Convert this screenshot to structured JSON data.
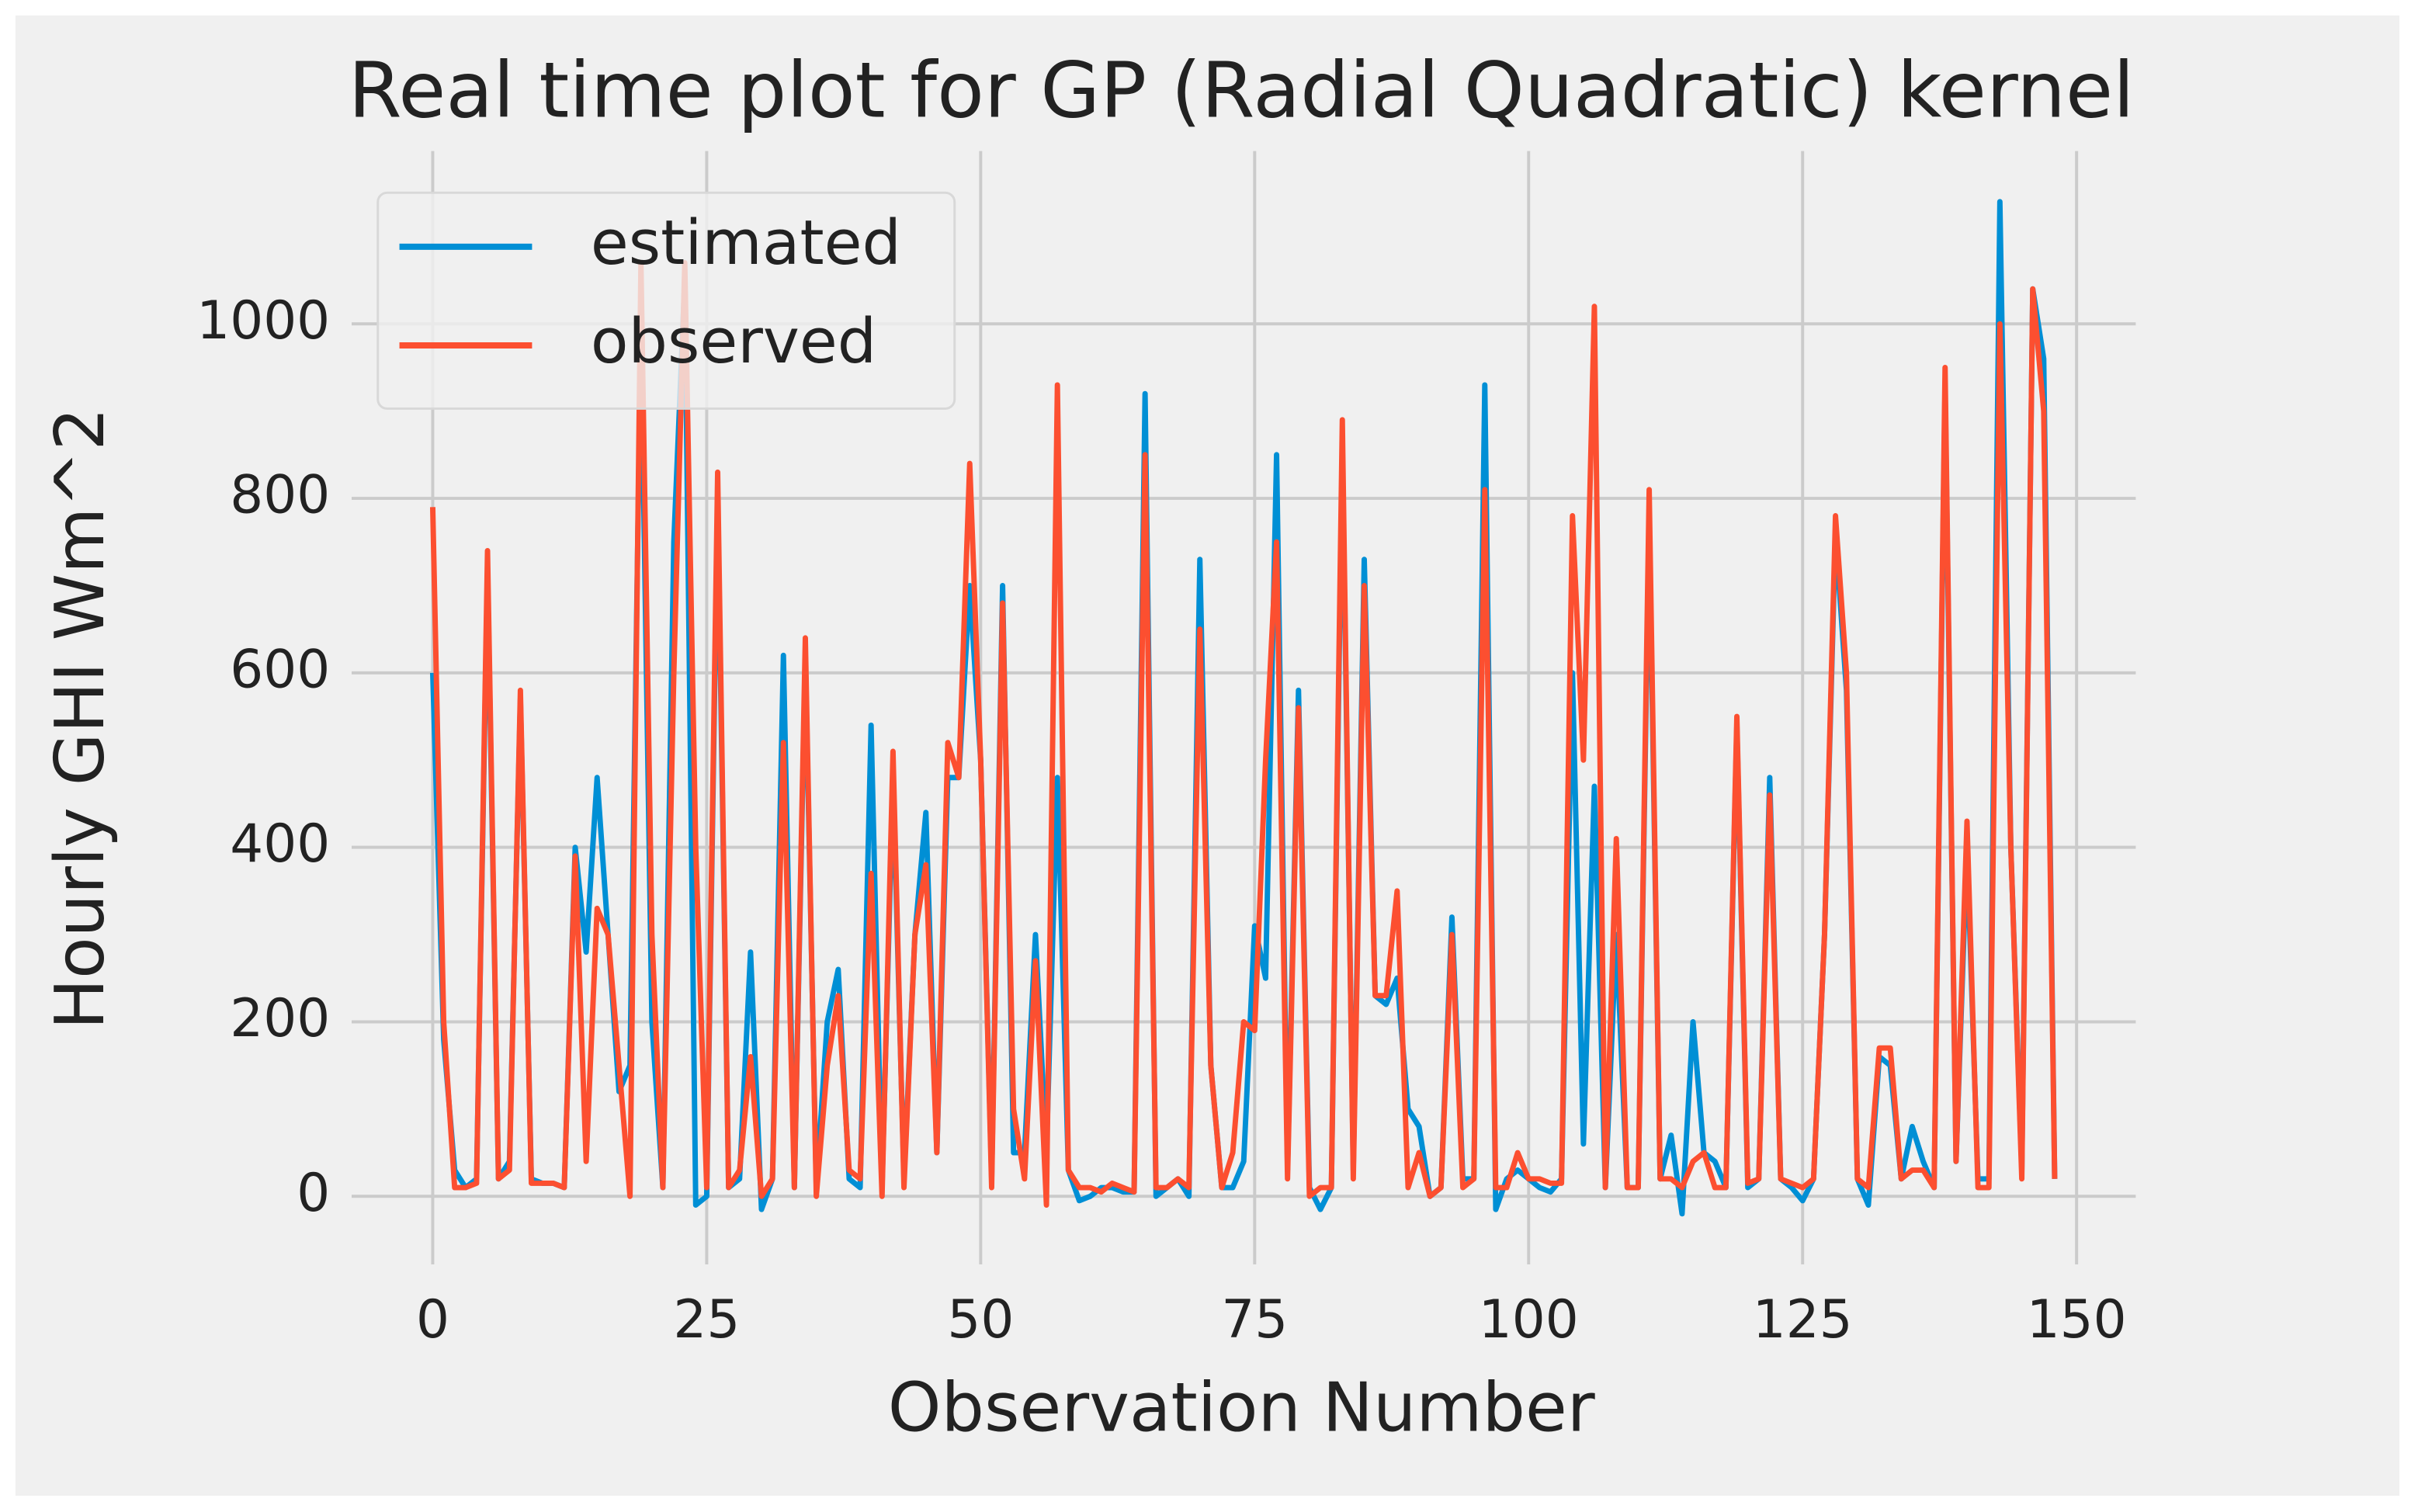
{
  "chart_data": {
    "type": "line",
    "title": "Real time plot for GP (Radial Quadratic) kernel",
    "xlabel": "Observation Number",
    "ylabel": "Hourly GHI Wm^2",
    "x": [
      0,
      1,
      2,
      3,
      4,
      5,
      6,
      7,
      8,
      9,
      10,
      11,
      12,
      13,
      14,
      15,
      16,
      17,
      18,
      19,
      20,
      21,
      22,
      23,
      24,
      25,
      26,
      27,
      28,
      29,
      30,
      31,
      32,
      33,
      34,
      35,
      36,
      37,
      38,
      39,
      40,
      41,
      42,
      43,
      44,
      45,
      46,
      47,
      48,
      49,
      50,
      51,
      52,
      53,
      54,
      55,
      56,
      57,
      58,
      59,
      60,
      61,
      62,
      63,
      64,
      65,
      66,
      67,
      68,
      69,
      70,
      71,
      72,
      73,
      74,
      75,
      76,
      77,
      78,
      79,
      80,
      81,
      82,
      83,
      84,
      85,
      86,
      87,
      88,
      89,
      90,
      91,
      92,
      93,
      94,
      95,
      96,
      97,
      98,
      99,
      100,
      101,
      102,
      103,
      104,
      105,
      106,
      107,
      108,
      109,
      110,
      111,
      112,
      113,
      114,
      115,
      116,
      117,
      118,
      119,
      120,
      121,
      122,
      123,
      124,
      125,
      126,
      127,
      128,
      129,
      130,
      131,
      132,
      133,
      134,
      135,
      136,
      137,
      138,
      139,
      140,
      141,
      142,
      143,
      144,
      145,
      146,
      147,
      148
    ],
    "series": [
      {
        "name": "estimated",
        "color": "#008fd5",
        "values": [
          600,
          180,
          30,
          10,
          20,
          720,
          20,
          40,
          570,
          20,
          15,
          15,
          10,
          400,
          280,
          480,
          300,
          120,
          150,
          1000,
          200,
          10,
          750,
          1050,
          -10,
          0,
          800,
          10,
          20,
          280,
          -15,
          20,
          620,
          10,
          620,
          10,
          200,
          260,
          20,
          10,
          540,
          10,
          480,
          20,
          300,
          440,
          50,
          480,
          480,
          700,
          500,
          20,
          700,
          50,
          50,
          300,
          50,
          480,
          30,
          -5,
          0,
          10,
          10,
          5,
          5,
          920,
          0,
          10,
          20,
          0,
          730,
          150,
          10,
          10,
          40,
          310,
          250,
          850,
          30,
          580,
          10,
          -15,
          10,
          860,
          30,
          730,
          230,
          220,
          250,
          100,
          80,
          0,
          10,
          320,
          20,
          20,
          930,
          -15,
          20,
          30,
          20,
          10,
          5,
          20,
          600,
          60,
          470,
          10,
          300,
          10,
          10,
          780,
          20,
          70,
          -20,
          200,
          50,
          40,
          10,
          540,
          10,
          20,
          480,
          20,
          10,
          -5,
          20,
          300,
          760,
          580,
          20,
          -10,
          160,
          150,
          20,
          80,
          40,
          10,
          930,
          40,
          400,
          20,
          20,
          1140,
          400,
          30,
          1040,
          960,
          20
        ]
      },
      {
        "name": "observed",
        "color": "#fc4f30",
        "values": [
          790,
          200,
          10,
          10,
          15,
          740,
          20,
          30,
          580,
          15,
          15,
          15,
          10,
          390,
          40,
          330,
          300,
          150,
          0,
          1070,
          300,
          10,
          600,
          1070,
          400,
          10,
          830,
          10,
          30,
          160,
          0,
          20,
          520,
          10,
          640,
          0,
          150,
          230,
          30,
          20,
          370,
          0,
          510,
          10,
          300,
          380,
          50,
          520,
          480,
          840,
          500,
          10,
          680,
          100,
          20,
          270,
          -10,
          930,
          30,
          10,
          10,
          5,
          15,
          10,
          5,
          850,
          10,
          10,
          20,
          10,
          650,
          150,
          10,
          50,
          200,
          190,
          500,
          750,
          20,
          560,
          0,
          10,
          10,
          890,
          20,
          700,
          230,
          230,
          350,
          10,
          50,
          0,
          10,
          300,
          10,
          20,
          810,
          10,
          10,
          50,
          20,
          20,
          15,
          15,
          780,
          500,
          1020,
          10,
          410,
          10,
          10,
          810,
          20,
          20,
          10,
          40,
          50,
          10,
          10,
          550,
          15,
          20,
          460,
          20,
          15,
          10,
          20,
          300,
          780,
          600,
          20,
          10,
          170,
          170,
          20,
          30,
          30,
          10,
          950,
          40,
          430,
          10,
          10,
          1000,
          400,
          20,
          1040,
          900,
          20
        ]
      }
    ],
    "xlim": [
      -7.4,
      155.4
    ],
    "xticks": [
      0,
      25,
      50,
      75,
      100,
      125,
      150
    ],
    "ylim": [
      -78,
      1198
    ],
    "yticks": [
      0,
      200,
      400,
      600,
      800,
      1000
    ],
    "grid": true,
    "legend": "upper left"
  }
}
